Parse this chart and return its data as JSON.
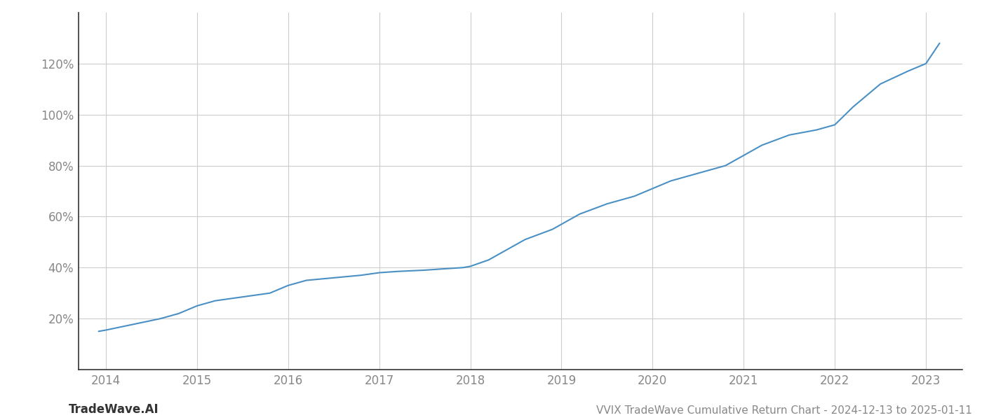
{
  "title": "VVIX TradeWave Cumulative Return Chart - 2024-12-13 to 2025-01-11",
  "watermark": "TradeWave.AI",
  "line_color": "#4a90c4",
  "background_color": "#ffffff",
  "grid_color": "#cccccc",
  "x_years": [
    2014,
    2015,
    2016,
    2017,
    2018,
    2019,
    2020,
    2021,
    2022,
    2023
  ],
  "x_data": [
    2013.92,
    2014.0,
    2014.2,
    2014.4,
    2014.6,
    2014.8,
    2015.0,
    2015.2,
    2015.5,
    2015.8,
    2016.0,
    2016.2,
    2016.5,
    2016.8,
    2017.0,
    2017.2,
    2017.5,
    2017.7,
    2017.92,
    2018.0,
    2018.2,
    2018.4,
    2018.6,
    2018.9,
    2019.0,
    2019.2,
    2019.5,
    2019.8,
    2020.0,
    2020.2,
    2020.5,
    2020.8,
    2021.0,
    2021.2,
    2021.5,
    2021.8,
    2022.0,
    2022.2,
    2022.5,
    2022.8,
    2023.0,
    2023.15
  ],
  "y_data": [
    15,
    15.5,
    17,
    18.5,
    20,
    22,
    25,
    27,
    28.5,
    30,
    33,
    35,
    36,
    37,
    38,
    38.5,
    39,
    39.5,
    40,
    40.5,
    43,
    47,
    51,
    55,
    57,
    61,
    65,
    68,
    71,
    74,
    77,
    80,
    84,
    88,
    92,
    94,
    96,
    103,
    112,
    117,
    120,
    128
  ],
  "ylim": [
    0,
    140
  ],
  "yticks": [
    20,
    40,
    60,
    80,
    100,
    120
  ],
  "xlim_min": 2013.7,
  "xlim_max": 2023.4,
  "title_fontsize": 11,
  "tick_fontsize": 12,
  "watermark_fontsize": 12,
  "axis_color": "#555555",
  "tick_color": "#888888",
  "spine_color": "#333333"
}
